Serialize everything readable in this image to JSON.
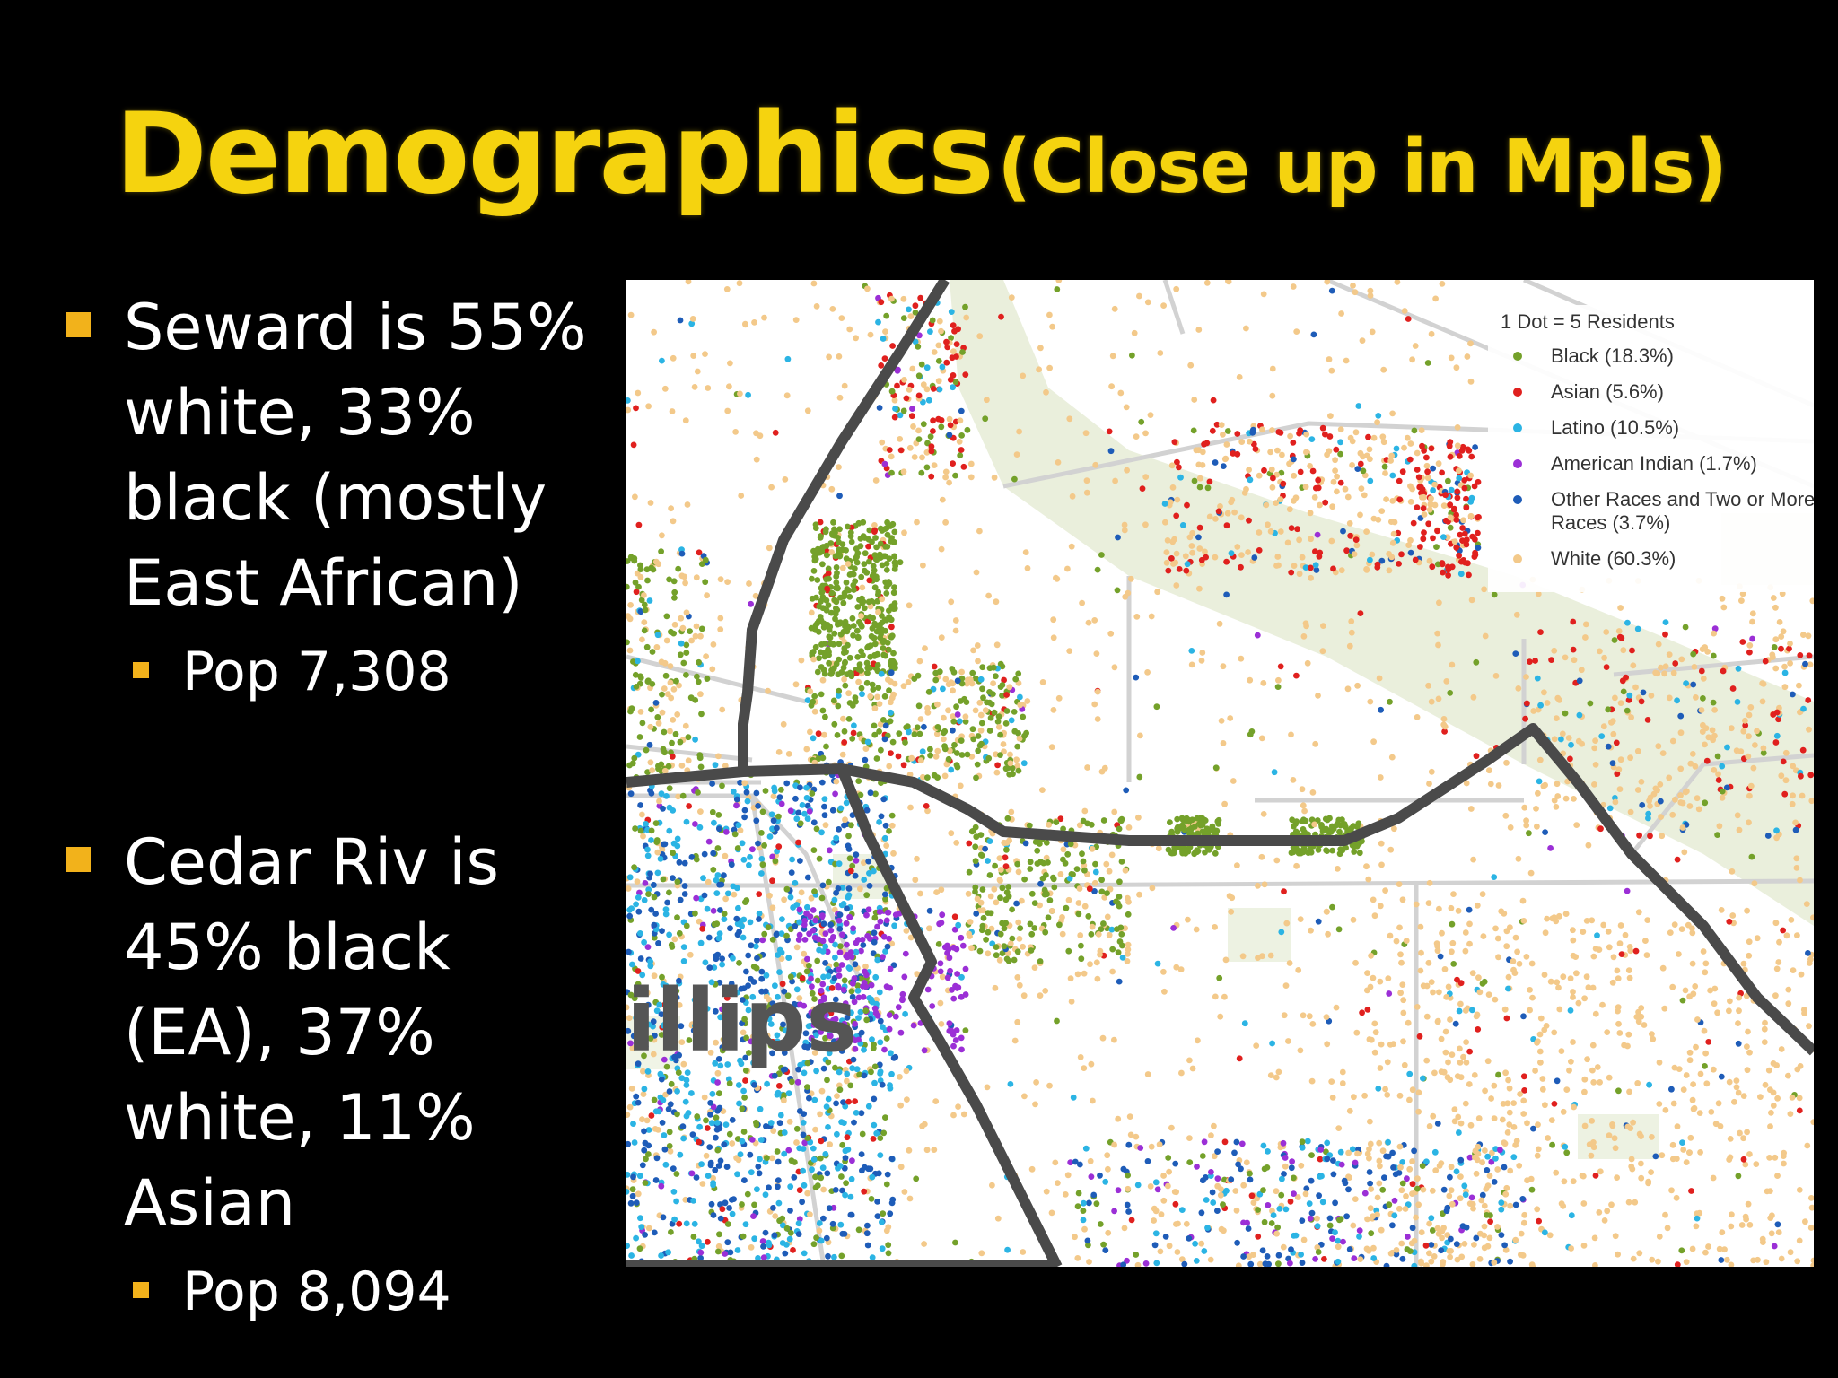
{
  "slide": {
    "title_main": "Demographics",
    "title_sub": "(Close up in Mpls)",
    "bullets": [
      {
        "lines": [
          "Seward is 55%",
          "white, 33%",
          "black (mostly",
          "East African)"
        ],
        "sub": "Pop 7,308"
      },
      {
        "lines": [
          "Cedar Riv is",
          "45% black",
          "(EA), 37%",
          "white, 11%",
          "Asian"
        ],
        "sub": "Pop 8,094"
      }
    ]
  },
  "map": {
    "label": "illips",
    "legend": {
      "title": "1 Dot = 5 Residents",
      "items": [
        {
          "label": "Black (18.3%)",
          "color": "#74a12a"
        },
        {
          "label": "Asian (5.6%)",
          "color": "#e0201e"
        },
        {
          "label": "Latino (10.5%)",
          "color": "#2bb4e4"
        },
        {
          "label": "American Indian (1.7%)",
          "color": "#9b2fd6"
        },
        {
          "label": "Other Races and Two or More Races (3.7%)",
          "color": "#1e5cb8"
        },
        {
          "label": "White (60.3%)",
          "color": "#f3c98a"
        }
      ]
    }
  },
  "colors": {
    "title": "#f5d30f",
    "bullet": "#f2b21b",
    "background": "#000000",
    "text": "#ffffff"
  }
}
